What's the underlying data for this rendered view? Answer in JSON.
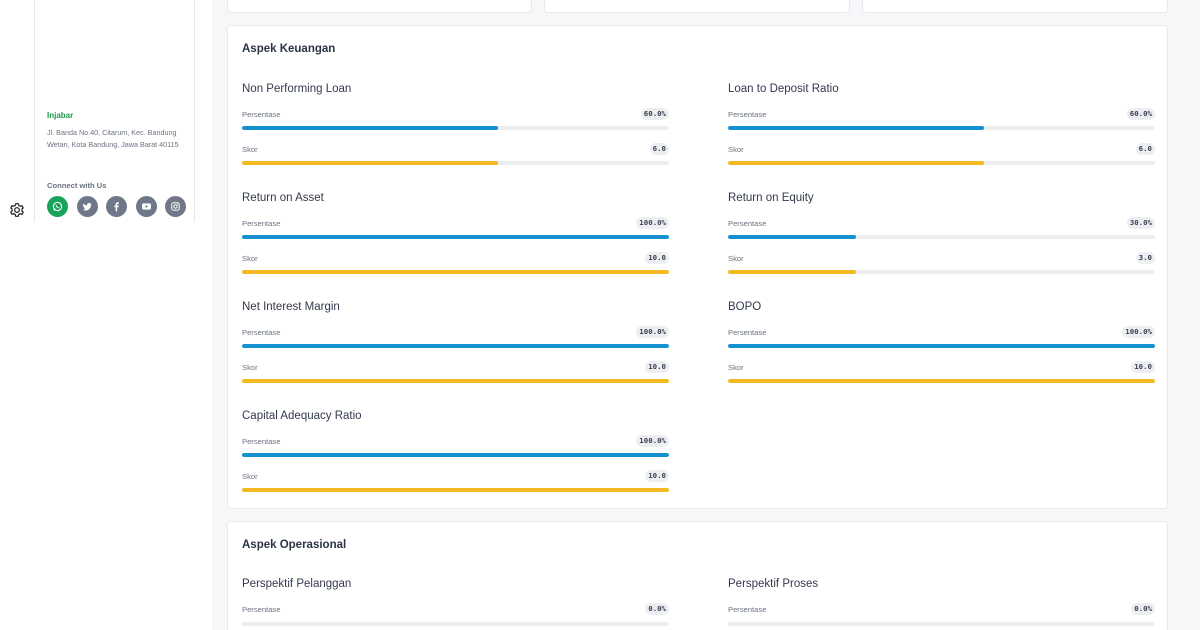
{
  "footer": {
    "brand": "Injabar",
    "address": "Jl. Banda No.40, Citarum, Kec. Bandung Wetan, Kota Bandung, Jawa Barat 40115",
    "connect_label": "Connect with Us",
    "socials": [
      "whatsapp-icon",
      "twitter-icon",
      "facebook-icon",
      "youtube-icon",
      "instagram-icon"
    ]
  },
  "colors": {
    "percent_bar": "#1590d0",
    "score_bar": "#f4b921",
    "brand": "#1a9b4b"
  },
  "keuangan": {
    "title": "Aspek Keuangan",
    "metrics": [
      {
        "name": "Non Performing Loan",
        "pct_label": "Persentase",
        "pct_text": "60.0%",
        "pct": 0.6,
        "skor_label": "Skor",
        "skor_text": "6.0",
        "skor": 0.6
      },
      {
        "name": "Loan to Deposit Ratio",
        "pct_label": "Persentase",
        "pct_text": "60.0%",
        "pct": 0.6,
        "skor_label": "Skor",
        "skor_text": "6.0",
        "skor": 0.6
      },
      {
        "name": "Return on Asset",
        "pct_label": "Persentase",
        "pct_text": "100.0%",
        "pct": 1.0,
        "skor_label": "Skor",
        "skor_text": "10.0",
        "skor": 1.0
      },
      {
        "name": "Return on Equity",
        "pct_label": "Persentase",
        "pct_text": "30.0%",
        "pct": 0.3,
        "skor_label": "Skor",
        "skor_text": "3.0",
        "skor": 0.3
      },
      {
        "name": "Net Interest Margin",
        "pct_label": "Persentase",
        "pct_text": "100.0%",
        "pct": 1.0,
        "skor_label": "Skor",
        "skor_text": "10.0",
        "skor": 1.0
      },
      {
        "name": "BOPO",
        "pct_label": "Persentase",
        "pct_text": "100.0%",
        "pct": 1.0,
        "skor_label": "Skor",
        "skor_text": "10.0",
        "skor": 1.0
      },
      {
        "name": "Capital Adequacy Ratio",
        "pct_label": "Persentase",
        "pct_text": "100.0%",
        "pct": 1.0,
        "skor_label": "Skor",
        "skor_text": "10.0",
        "skor": 1.0
      }
    ]
  },
  "operasional": {
    "title": "Aspek Operasional",
    "metrics": [
      {
        "name": "Perspektif Pelanggan",
        "pct_label": "Persentase",
        "pct_text": "0.0%",
        "pct": 0.0
      },
      {
        "name": "Perspektif Proses",
        "pct_label": "Persentase",
        "pct_text": "0.0%",
        "pct": 0.0
      }
    ]
  }
}
